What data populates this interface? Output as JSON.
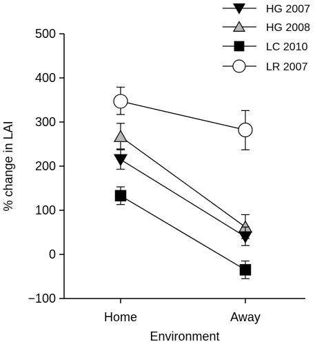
{
  "chart_data": {
    "type": "line",
    "xlabel": "Environment",
    "ylabel": "% change in LAI",
    "categories": [
      "Home",
      "Away"
    ],
    "ylim": [
      -100,
      500
    ],
    "yticks": [
      -100,
      0,
      100,
      200,
      300,
      400,
      500
    ],
    "ytick_labels": [
      "−100",
      "0",
      "100",
      "200",
      "300",
      "400",
      "500"
    ],
    "grid": false,
    "legend_position": "top-right",
    "series": [
      {
        "name": "HG 2007",
        "marker": "triangle-down",
        "fill": "#000000",
        "values": [
          215,
          40
        ],
        "errors": [
          [
            22,
            22
          ],
          [
            20,
            22
          ]
        ]
      },
      {
        "name": "HG 2008",
        "marker": "triangle-up",
        "fill": "#b8b8b8",
        "values": [
          267,
          62
        ],
        "errors": [
          [
            28,
            30
          ],
          [
            26,
            28
          ]
        ]
      },
      {
        "name": "LC 2010",
        "marker": "square",
        "fill": "#000000",
        "values": [
          133,
          -35
        ],
        "errors": [
          [
            20,
            20
          ],
          [
            20,
            20
          ]
        ]
      },
      {
        "name": "LR 2007",
        "marker": "circle",
        "fill": "#ffffff",
        "values": [
          347,
          282
        ],
        "errors": [
          [
            30,
            32
          ],
          [
            45,
            44
          ]
        ]
      }
    ]
  }
}
